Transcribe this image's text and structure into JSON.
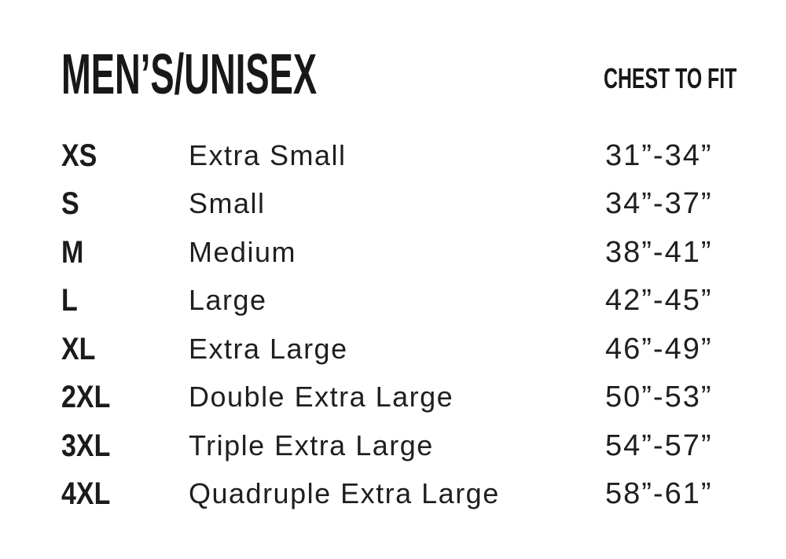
{
  "colors": {
    "background": "#ffffff",
    "text": "#1b1b1b"
  },
  "header": {
    "title": "MEN’S/UNISEX",
    "chest_column_label": "CHEST TO FIT"
  },
  "size_table": {
    "rows": [
      {
        "code": "XS",
        "name": "Extra Small",
        "chest_range": "31”-34”"
      },
      {
        "code": "S",
        "name": "Small",
        "chest_range": "34”-37”"
      },
      {
        "code": "M",
        "name": "Medium",
        "chest_range": "38”-41”"
      },
      {
        "code": "L",
        "name": "Large",
        "chest_range": "42”-45”"
      },
      {
        "code": "XL",
        "name": "Extra Large",
        "chest_range": "46”-49”"
      },
      {
        "code": "2XL",
        "name": "Double Extra Large",
        "chest_range": "50”-53”"
      },
      {
        "code": "3XL",
        "name": "Triple Extra Large",
        "chest_range": "54”-57”"
      },
      {
        "code": "4XL",
        "name": "Quadruple Extra Large",
        "chest_range": "58”-61”"
      }
    ]
  }
}
